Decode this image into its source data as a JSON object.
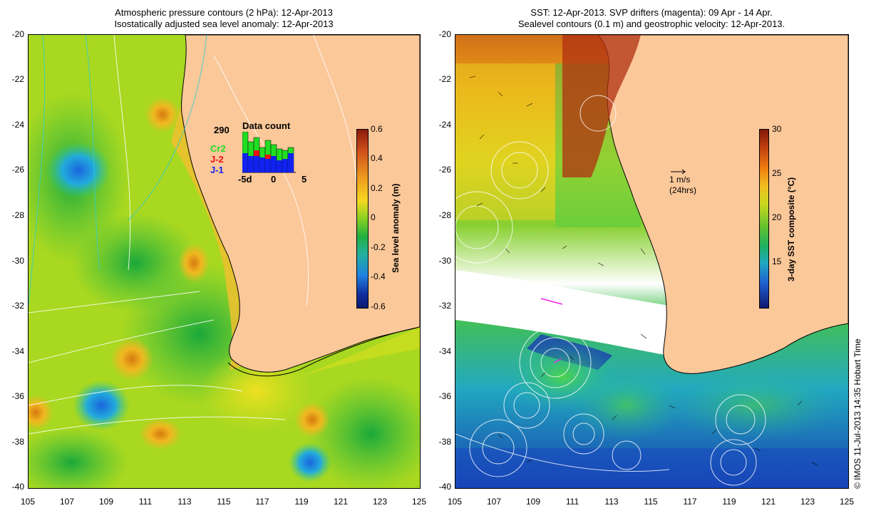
{
  "left": {
    "title_line1": "Atmospheric pressure contours (2 hPa): 12-Apr-2013",
    "title_line2": "Isostatically adjusted sea level anomaly: 12-Apr-2013",
    "colorbar_label": "Sea level anomaly (m)",
    "colorbar_ticks": [
      "0.6",
      "0.4",
      "0.2",
      "0",
      "-0.2",
      "-0.4",
      "-0.6"
    ],
    "data_count": {
      "number": "290",
      "title": "Data count",
      "legend": [
        {
          "label": "Cr2",
          "color": "#22dd22"
        },
        {
          "label": "J-2",
          "color": "#ee1111"
        },
        {
          "label": "J-1",
          "color": "#1122ee"
        }
      ],
      "x_ticks": [
        "-5d",
        "0",
        "5"
      ]
    }
  },
  "right": {
    "title_line1": "SST: 12-Apr-2013. SVP drifters (magenta): 09 Apr - 14 Apr.",
    "title_line2": "Sealevel contours (0.1 m) and geostrophic velocity: 12-Apr-2013.",
    "colorbar_label": "3-day SST composite (°C)",
    "colorbar_ticks": [
      "30",
      "25",
      "20",
      "15"
    ],
    "scale_label_1": "1 m/s",
    "scale_label_2": "(24hrs)"
  },
  "y_ticks": [
    "-20",
    "-22",
    "-24",
    "-26",
    "-28",
    "-30",
    "-32",
    "-34",
    "-36",
    "-38",
    "-40"
  ],
  "x_ticks": [
    "105",
    "107",
    "109",
    "111",
    "113",
    "115",
    "117",
    "119",
    "121",
    "123",
    "125"
  ],
  "credit": "© IMOS 11-Jul-2013 14:35 Hobart Time",
  "colors": {
    "land": "#fbc89a",
    "ocean_base": "#a8d820"
  }
}
